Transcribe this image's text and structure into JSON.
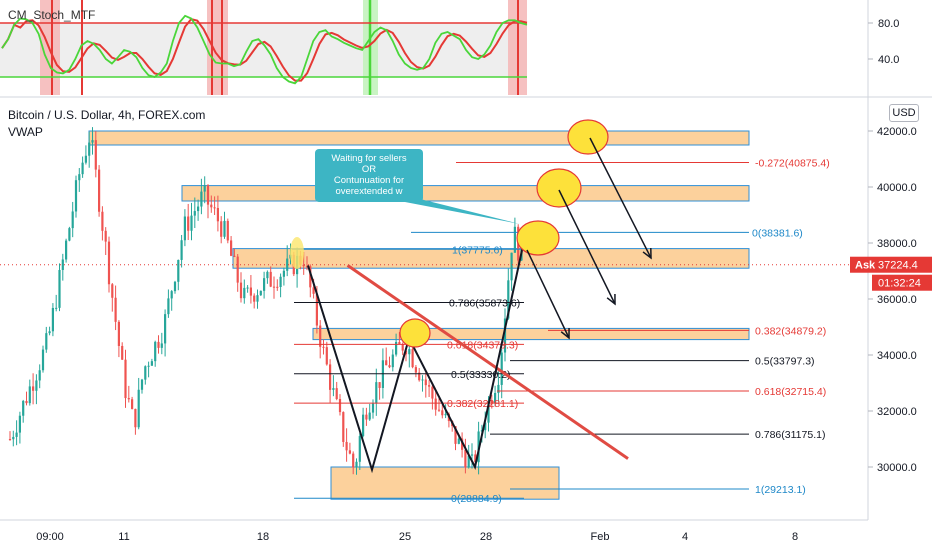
{
  "indicator": {
    "title": "CM_Stoch_MTF",
    "axis_ticks": [
      80.0,
      40.0
    ],
    "axis_labels": [
      "80.0",
      "40.0"
    ],
    "upper_level": 80,
    "lower_level": 20,
    "range": [
      0,
      100
    ]
  },
  "header": {
    "title": "Bitcoin / U.S. Dollar, 4h, FOREX.com",
    "vwap_label": "VWAP",
    "currency": "USD"
  },
  "price_axis": {
    "ticks": [
      42000,
      40000,
      38000,
      36000,
      34000,
      32000,
      30000
    ],
    "labels": [
      "42000.0",
      "40000.0",
      "38000.0",
      "36000.0",
      "34000.0",
      "32000.0",
      "30000.0"
    ],
    "ask_label": "Ask",
    "ask_price": "37224.4",
    "ask_price_value": 37224.4,
    "countdown": "01:32:24"
  },
  "time_axis": {
    "labels": [
      "09:00",
      "11",
      "18",
      "25",
      "28",
      "Feb",
      "4",
      "8"
    ]
  },
  "callout": {
    "line1": "Waiting for sellers",
    "line2": "OR",
    "line3": "Contunuation for",
    "line4": "overextended w"
  },
  "fib_levels": [
    {
      "label": "-0.272(40875.4)",
      "price": 40875.4,
      "color": "#e53935"
    },
    {
      "label": "0(38381.6)",
      "price": 38381.6,
      "color": "#1e88c8"
    },
    {
      "label": "1(37775.6)",
      "price": 37775.6,
      "color": "#1e88c8"
    },
    {
      "label": "0.786(35873.6)",
      "price": 35873.6,
      "color": "#131722"
    },
    {
      "label": "0.382(34879.2)",
      "price": 34879.2,
      "color": "#e53935"
    },
    {
      "label": "0.618(34379.3)",
      "price": 34379.3,
      "color": "#e53935"
    },
    {
      "label": "0.5(33797.3)",
      "price": 33797.3,
      "color": "#131722"
    },
    {
      "label": "0.5(33330.2)",
      "price": 33330.2,
      "color": "#131722"
    },
    {
      "label": "0.618(32715.4)",
      "price": 32715.4,
      "color": "#e53935"
    },
    {
      "label": "0.382(32281.1)",
      "price": 32281.1,
      "color": "#e53935"
    },
    {
      "label": "0.786(31175.1)",
      "price": 31175.1,
      "color": "#131722"
    },
    {
      "label": "1(29213.1)",
      "price": 29213.1,
      "color": "#1e88c8"
    },
    {
      "label": "0(28884.9)",
      "price": 28884.9,
      "color": "#1e88c8"
    }
  ],
  "zones": [
    {
      "name": "zone-41500",
      "top": 42000,
      "bottom": 41500
    },
    {
      "name": "zone-39700",
      "top": 40050,
      "bottom": 39500
    },
    {
      "name": "zone-37400",
      "top": 37800,
      "bottom": 37100
    },
    {
      "name": "zone-34800",
      "top": 34950,
      "bottom": 34550
    },
    {
      "name": "zone-29500",
      "top": 30000,
      "bottom": 28850
    }
  ],
  "chart_data": {
    "type": "candlestick",
    "symbol": "Bitcoin / U.S. Dollar",
    "timeframe": "4h",
    "y_range": [
      28200,
      43100
    ],
    "current_price": 37224.4,
    "price_path": [
      {
        "date": "Jan 8",
        "price": 31000
      },
      {
        "date": "Jan 9",
        "price": 34500
      },
      {
        "date": "Jan 9 18:00",
        "price": 40500
      },
      {
        "date": "Jan 10",
        "price": 41900
      },
      {
        "date": "Jan 10 12:00",
        "price": 37500
      },
      {
        "date": "Jan 11",
        "price": 33000
      },
      {
        "date": "Jan 11 12:00",
        "price": 31500
      },
      {
        "date": "Jan 12",
        "price": 33500
      },
      {
        "date": "Jan 13",
        "price": 35000
      },
      {
        "date": "Jan 14",
        "price": 38500
      },
      {
        "date": "Jan 15",
        "price": 39700
      },
      {
        "date": "Jan 16",
        "price": 38500
      },
      {
        "date": "Jan 17",
        "price": 36000
      },
      {
        "date": "Jan 18",
        "price": 36500
      },
      {
        "date": "Jan 19",
        "price": 37000
      },
      {
        "date": "Jan 20",
        "price": 37500
      },
      {
        "date": "Jan 21",
        "price": 34000
      },
      {
        "date": "Jan 22",
        "price": 31000
      },
      {
        "date": "Jan 22 12:00",
        "price": 29900
      },
      {
        "date": "Jan 23",
        "price": 32000
      },
      {
        "date": "Jan 24",
        "price": 33500
      },
      {
        "date": "Jan 25",
        "price": 34500
      },
      {
        "date": "Jan 26",
        "price": 32500
      },
      {
        "date": "Jan 27",
        "price": 30800
      },
      {
        "date": "Jan 27 12:00",
        "price": 30000
      },
      {
        "date": "Jan 28",
        "price": 32000
      },
      {
        "date": "Jan 28 12:00",
        "price": 33500
      },
      {
        "date": "Jan 29",
        "price": 38500
      },
      {
        "date": "Jan 29 12:00",
        "price": 37300
      }
    ],
    "w_pattern": [
      {
        "date": "Jan 20",
        "price": 37200
      },
      {
        "date": "Jan 22 12:00",
        "price": 29900
      },
      {
        "date": "Jan 25",
        "price": 34600
      },
      {
        "date": "Jan 27 12:00",
        "price": 30000
      },
      {
        "date": "Jan 29",
        "price": 38400
      }
    ],
    "trendline": [
      {
        "date": "Jan 20",
        "price": 37200
      },
      {
        "date": "Feb 2",
        "price": 30300
      }
    ],
    "projection_arrows": [
      {
        "from": {
          "date": "Feb 1",
          "price": 41800
        },
        "to": {
          "date": "Feb 3",
          "price": 37500
        }
      },
      {
        "from": {
          "date": "Jan 30",
          "price": 39700
        },
        "to": {
          "date": "Feb 1",
          "price": 36100
        }
      },
      {
        "from": {
          "date": "Jan 29",
          "price": 37700
        },
        "to": {
          "date": "Jan 31",
          "price": 34700
        }
      }
    ],
    "stoch": [
      52,
      62,
      78,
      85,
      84,
      80,
      68,
      45,
      30,
      25,
      24,
      28,
      40,
      55,
      60,
      57,
      50,
      40,
      35,
      42,
      50,
      48,
      42,
      30,
      22,
      20,
      25,
      35,
      60,
      80,
      88,
      85,
      75,
      60,
      45,
      36,
      35,
      35,
      32,
      34,
      48,
      60,
      62,
      55,
      45,
      30,
      20,
      15,
      13,
      20,
      40,
      60,
      70,
      72,
      65,
      62,
      58,
      55,
      52,
      50,
      60,
      70,
      75,
      72,
      60,
      45,
      35,
      30,
      28,
      30,
      40,
      58,
      68,
      70,
      66,
      62,
      50,
      42,
      40,
      45,
      55,
      70,
      80,
      83,
      83,
      80,
      78
    ]
  }
}
